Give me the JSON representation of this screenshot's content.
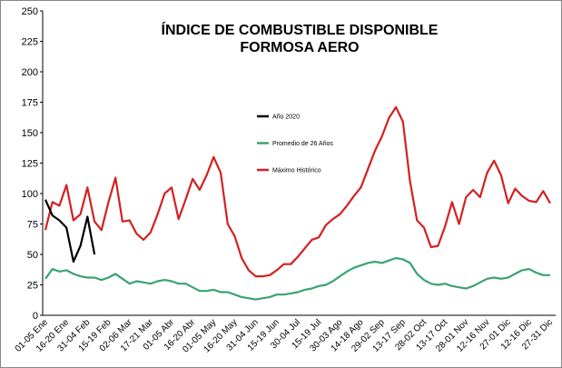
{
  "chart_data": {
    "type": "line",
    "title": [
      "ÍNDICE DE COMBUSTIBLE DISPONIBLE",
      "FORMOSA  AERO"
    ],
    "categories": [
      "01-05 Ene",
      null,
      null,
      "16-20 Ene",
      null,
      null,
      "31-04 Feb",
      null,
      null,
      "15-19 Feb",
      null,
      null,
      "02-06 Mar",
      null,
      null,
      "17-21 Mar",
      null,
      null,
      "01-05 Abr",
      null,
      null,
      "16-20 Abr",
      null,
      null,
      "01-05 May",
      null,
      null,
      "16-20 May",
      null,
      null,
      "31-04 Jun",
      null,
      null,
      "15-19 Jun",
      null,
      null,
      "30-04 Jul",
      null,
      null,
      "15-19 Jul",
      null,
      null,
      "30-03 Ago",
      null,
      null,
      "14-18 Ago",
      null,
      null,
      "29-02 Sep",
      null,
      null,
      "13-17 Sep",
      null,
      null,
      "28-02 Oct",
      null,
      null,
      "13-17 Oct",
      null,
      null,
      "28-01 Nov",
      null,
      null,
      "12-16 Nov",
      null,
      null,
      "27-01 Dic",
      null,
      null,
      "12-16 Dic",
      null,
      null,
      "27-31 Dic"
    ],
    "series": [
      {
        "name": "Año 2020",
        "color": "#000000",
        "values": [
          95,
          82,
          78,
          72,
          44,
          57,
          81,
          50,
          null,
          null,
          null,
          null,
          null,
          null,
          null,
          null,
          null,
          null,
          null,
          null,
          null,
          null,
          null,
          null,
          null,
          null,
          null,
          null,
          null,
          null,
          null,
          null,
          null,
          null,
          null,
          null,
          null,
          null,
          null,
          null,
          null,
          null,
          null,
          null,
          null,
          null,
          null,
          null,
          null,
          null,
          null,
          null,
          null,
          null,
          null,
          null,
          null,
          null,
          null,
          null,
          null,
          null,
          null,
          null,
          null,
          null,
          null,
          null,
          null,
          null,
          null,
          null,
          null
        ]
      },
      {
        "name": "Promedio de 26 Años",
        "color": "#3aa373",
        "values": [
          30,
          38,
          36,
          37,
          34,
          32,
          31,
          31,
          29,
          31,
          34,
          30,
          26,
          28,
          27,
          26,
          28,
          29,
          28,
          26,
          26,
          23,
          20,
          20,
          21,
          19,
          19,
          17,
          15,
          14,
          13,
          14,
          15,
          17,
          17,
          18,
          19,
          21,
          22,
          24,
          25,
          28,
          32,
          36,
          39,
          41,
          43,
          44,
          43,
          45,
          47,
          46,
          43,
          34,
          29,
          26,
          25,
          26,
          24,
          23,
          22,
          24,
          27,
          30,
          31,
          30,
          31,
          34,
          37,
          38,
          35,
          33,
          33
        ]
      },
      {
        "name": "Máximo Histórico",
        "color": "#d42020",
        "values": [
          70,
          93,
          90,
          107,
          78,
          83,
          105,
          77,
          70,
          93,
          113,
          77,
          78,
          67,
          62,
          68,
          83,
          100,
          105,
          79,
          95,
          112,
          103,
          115,
          130,
          117,
          75,
          65,
          47,
          37,
          32,
          32,
          33,
          37,
          42,
          42,
          48,
          55,
          62,
          64,
          74,
          79,
          83,
          90,
          98,
          105,
          120,
          135,
          147,
          162,
          171,
          159,
          110,
          78,
          72,
          56,
          57,
          73,
          93,
          75,
          97,
          103,
          97,
          117,
          127,
          115,
          92,
          104,
          98,
          94,
          93,
          102,
          92
        ]
      }
    ],
    "ylim": [
      0,
      250
    ],
    "yticks": [
      0,
      25,
      50,
      75,
      100,
      125,
      150,
      175,
      200,
      225,
      250
    ],
    "grid": false
  }
}
